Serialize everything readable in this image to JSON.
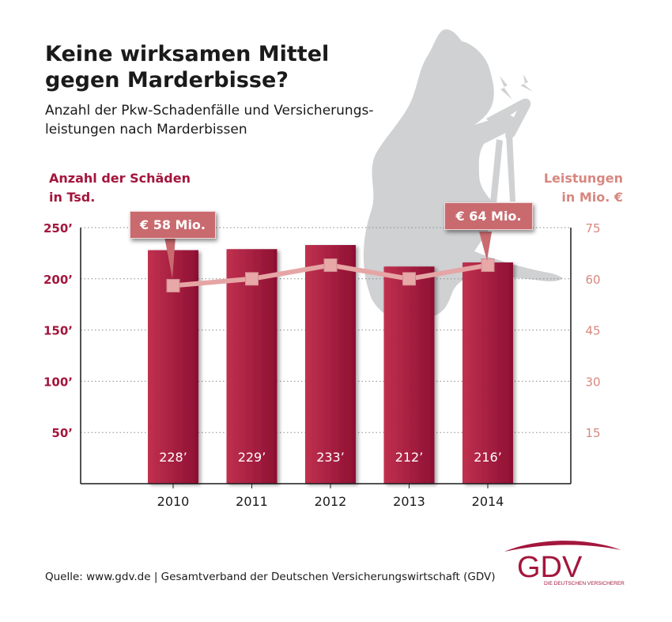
{
  "title_lines": [
    "Keine wirksamen Mittel",
    "gegen Marderbisse?"
  ],
  "subtitle_lines": [
    "Anzahl der Pkw-Schadenfälle und Versicherungs-",
    "leistungen nach Marderbissen"
  ],
  "left_axis_title_lines": [
    "Anzahl der Schäden",
    "in Tsd."
  ],
  "right_axis_title_lines": [
    "Leistungen",
    "in Mio. €"
  ],
  "callouts": {
    "first": "€ 58 Mio.",
    "last": "€ 64 Mio."
  },
  "source": "Quelle: www.gdv.de | Gesamtverband der Deutschen Versicherungswirtschaft (GDV)",
  "logo": {
    "text": "GDV",
    "tagline": "DIE DEUTSCHEN VERSICHERER"
  },
  "colors": {
    "bar": "#a3163c",
    "line": "#e6a5a5",
    "left_axis": "#a3163c",
    "right_axis": "#d8877f",
    "silhouette": "#cfd1d3"
  },
  "icons": [
    "marten-silhouette-icon",
    "lightning-icon"
  ],
  "chart_data": {
    "type": "bar",
    "categories": [
      "2010",
      "2011",
      "2012",
      "2013",
      "2014"
    ],
    "bar_labels": [
      "228’",
      "229’",
      "233’",
      "212’",
      "216’"
    ],
    "series": [
      {
        "values": [
          228,
          229,
          233,
          212,
          216
        ],
        "axis": "left",
        "type": "bar"
      },
      {
        "values": [
          58,
          60,
          64,
          60,
          64
        ],
        "axis": "right",
        "type": "line"
      }
    ],
    "left_ticks": [
      "50’",
      "100’",
      "150’",
      "200’",
      "250’"
    ],
    "left_ylim": [
      0,
      250
    ],
    "right_ticks": [
      "15",
      "30",
      "45",
      "60",
      "75"
    ],
    "right_ylim": [
      0,
      75
    ],
    "grid": true
  }
}
